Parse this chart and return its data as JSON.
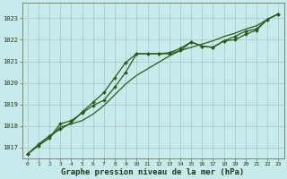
{
  "xlabel": "Graphe pression niveau de la mer (hPa)",
  "background_color": "#c8eaea",
  "grid_color": "#b0d0d0",
  "line_color": "#2d5a1b",
  "xlim": [
    -0.5,
    23.5
  ],
  "ylim": [
    1016.5,
    1023.7
  ],
  "yticks": [
    1017,
    1018,
    1019,
    1020,
    1021,
    1022,
    1023
  ],
  "xticks": [
    0,
    1,
    2,
    3,
    4,
    5,
    6,
    7,
    8,
    9,
    10,
    11,
    12,
    13,
    14,
    15,
    16,
    17,
    18,
    19,
    20,
    21,
    22,
    23
  ],
  "series1_x": [
    0,
    1,
    2,
    3,
    4,
    5,
    6,
    7,
    8,
    9,
    10,
    11,
    12,
    13,
    14,
    15,
    16,
    17,
    18,
    19,
    20,
    21,
    22,
    23
  ],
  "series1_y": [
    1016.7,
    1017.15,
    1017.55,
    1017.85,
    1018.15,
    1018.65,
    1019.1,
    1019.55,
    1020.25,
    1020.95,
    1021.35,
    1021.35,
    1021.35,
    1021.4,
    1021.6,
    1021.9,
    1021.7,
    1021.65,
    1021.95,
    1022.15,
    1022.4,
    1022.5,
    1022.95,
    1023.2
  ],
  "series2_x": [
    0,
    1,
    2,
    3,
    4,
    5,
    6,
    7,
    8,
    9,
    10,
    11,
    12,
    13,
    14,
    15,
    16,
    17,
    18,
    19,
    20,
    21,
    22,
    23
  ],
  "series2_y": [
    1016.7,
    1017.1,
    1017.45,
    1017.95,
    1018.1,
    1018.25,
    1018.55,
    1018.95,
    1019.45,
    1019.95,
    1020.35,
    1020.65,
    1020.95,
    1021.25,
    1021.5,
    1021.65,
    1021.8,
    1021.95,
    1022.15,
    1022.3,
    1022.5,
    1022.65,
    1022.95,
    1023.2
  ],
  "series3_x": [
    0,
    1,
    2,
    3,
    4,
    5,
    6,
    7,
    8,
    9,
    10,
    11,
    12,
    13,
    14,
    15,
    16,
    17,
    18,
    19,
    20,
    21,
    22,
    23
  ],
  "series3_y": [
    1016.7,
    1017.1,
    1017.45,
    1018.1,
    1018.25,
    1018.6,
    1018.95,
    1019.2,
    1019.8,
    1020.5,
    1021.35,
    1021.35,
    1021.35,
    1021.35,
    1021.5,
    1021.9,
    1021.7,
    1021.65,
    1021.95,
    1022.0,
    1022.25,
    1022.45,
    1022.95,
    1023.2
  ]
}
